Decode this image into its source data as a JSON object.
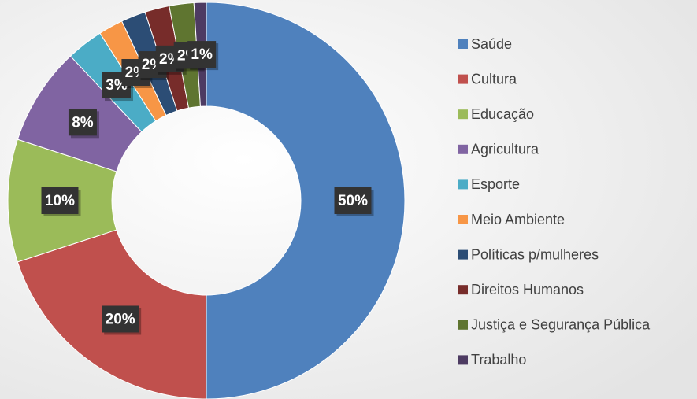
{
  "chart_data": {
    "type": "donut",
    "categories": [
      "Saúde",
      "Cultura",
      "Educação",
      "Agricultura",
      "Esporte",
      "Meio Ambiente",
      "Políticas p/mulheres",
      "Direitos Humanos",
      "Justiça e Segurança Pública",
      "Trabalho"
    ],
    "values": [
      50,
      20,
      10,
      8,
      3,
      2,
      2,
      2,
      2,
      1
    ],
    "value_labels": [
      "50%",
      "20%",
      "10%",
      "8%",
      "3%",
      "2%",
      "2%",
      "2%",
      "2%",
      "1%"
    ],
    "colors": [
      "#4f81bd",
      "#c0504d",
      "#9bbb59",
      "#8064a2",
      "#4bacc6",
      "#f79646",
      "#2c4d75",
      "#772c2a",
      "#5f7530",
      "#4d3b62"
    ],
    "legend": "right"
  }
}
